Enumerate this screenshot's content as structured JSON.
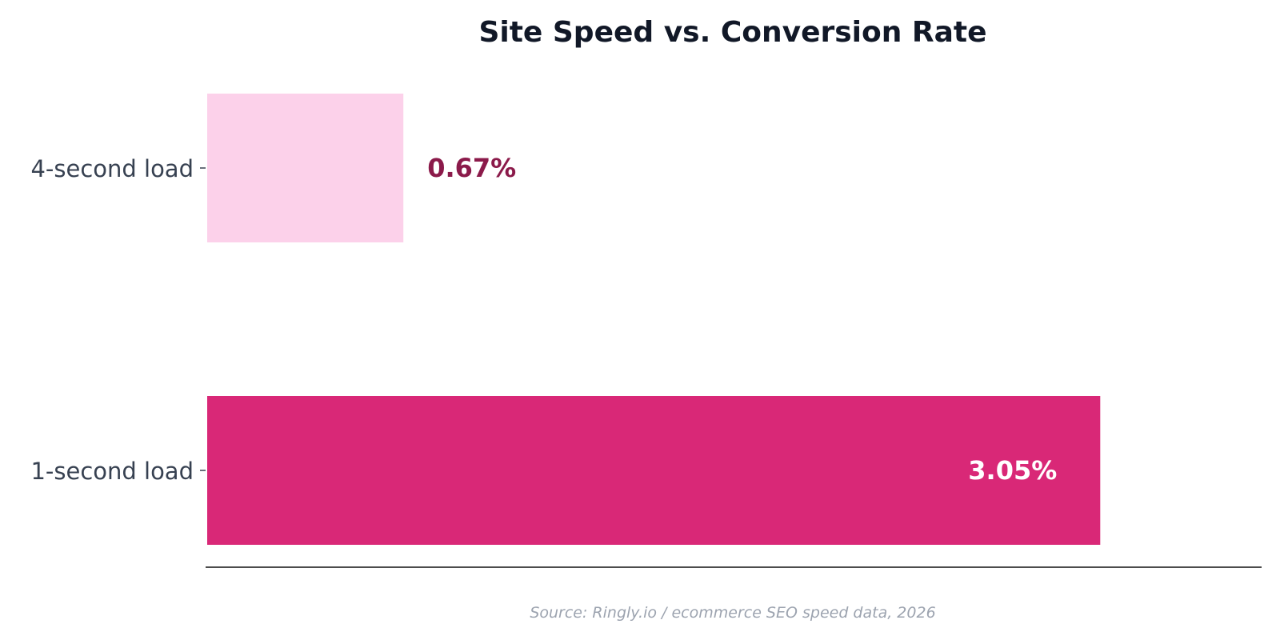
{
  "chart_data": {
    "type": "bar",
    "orientation": "horizontal",
    "title": "Site Speed vs. Conversion Rate",
    "categories": [
      "4-second load",
      "1-second load"
    ],
    "values": [
      0.67,
      3.05
    ],
    "value_labels": [
      "0.67%",
      "3.05%"
    ],
    "unit": "%",
    "xlim": [
      0,
      3.6
    ],
    "grid": false,
    "legend": "none",
    "colors": {
      "bars": [
        "#fcd1ea",
        "#d92877"
      ],
      "value_labels": [
        "#8b1a4a",
        "#ffffff"
      ],
      "title": "#111827",
      "tick_labels": "#374151",
      "axis": "#111111"
    },
    "source": "Source: Ringly.io / ecommerce SEO speed data, 2026"
  }
}
